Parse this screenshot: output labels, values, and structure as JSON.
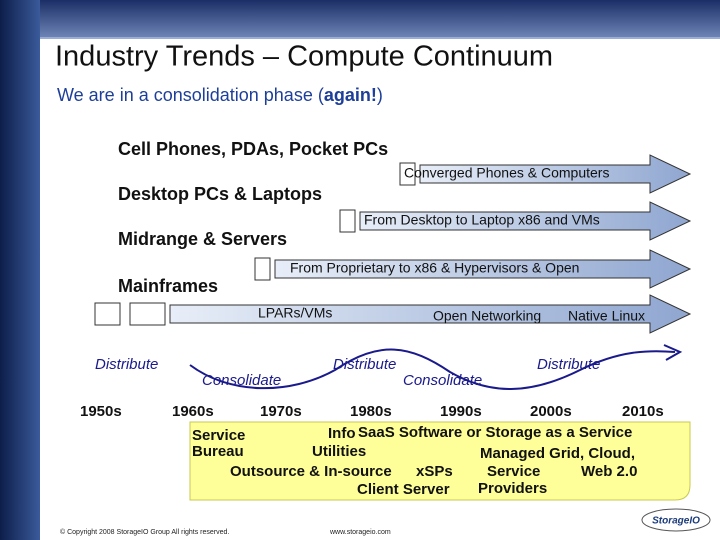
{
  "header": {
    "title": "Industry Trends – Compute Continuum",
    "subtitle": {
      "before": "We are in a consolidation phase (",
      "emphasis": "again!",
      "after": ")"
    }
  },
  "tiers": [
    "Cell Phones, PDAs, Pocket PCs",
    "Desktop PCs & Laptops",
    "Midrange & Servers",
    "Mainframes"
  ],
  "arrows": [
    {
      "label": "Converged Phones & Computers"
    },
    {
      "label": "From Desktop to Laptop x86 and VMs"
    },
    {
      "label": "From Proprietary to x86 & Hypervisors & Open"
    },
    {
      "labels": [
        "LPARs/VMs",
        "Open Networking",
        "Native Linux"
      ]
    }
  ],
  "cycle": [
    "Distribute",
    "Consolidate",
    "Distribute",
    "Consolidate",
    "Distribute"
  ],
  "decades": [
    "1950s",
    "1960s",
    "1970s",
    "1980s",
    "1990s",
    "2000s",
    "2010s"
  ],
  "eras": [
    "Service",
    "Bureau",
    "Info",
    "Utilities",
    "Outsource & In-source",
    "xSPs",
    "Client Server",
    "SaaS Software or Storage as a Service",
    "Managed Grid, Cloud,",
    "Service",
    "Providers",
    "Web 2.0"
  ],
  "footer": {
    "copyright": "© Copyright 2008 StorageIO Group All rights reserved.",
    "url": "www.storageio.com",
    "logo": "StorageIO"
  }
}
